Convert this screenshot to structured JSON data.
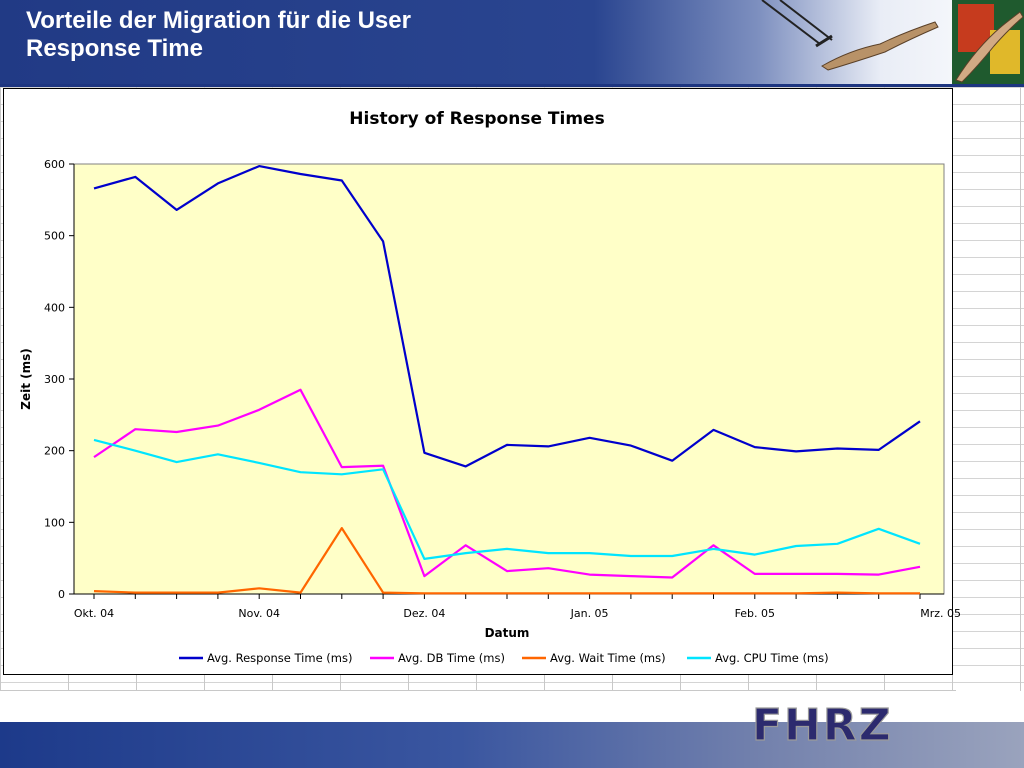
{
  "slide": {
    "title_line1": "Vorteile der Migration für die User",
    "title_line2": "Response Time",
    "logo_text": "FHRZ"
  },
  "colors": {
    "header_blue": "#213a85",
    "plot_bg": "#ffffc8",
    "response": "#0000cc",
    "db": "#ff00ff",
    "wait": "#ff6600",
    "cpu": "#00e5ff"
  },
  "chart_data": {
    "type": "line",
    "title": "History of Response Times",
    "xlabel": "Datum",
    "ylabel": "Zeit (ms)",
    "ylim": [
      0,
      600
    ],
    "yticks": [
      0,
      100,
      200,
      300,
      400,
      500,
      600
    ],
    "x_tick_labels": [
      "Okt. 04",
      "Nov. 04",
      "Dez. 04",
      "Jan. 05",
      "Feb. 05",
      "Mrz. 05"
    ],
    "x_tick_label_positions": [
      0,
      4,
      8,
      12,
      16,
      20.5
    ],
    "n_points": 21,
    "grid": false,
    "legend_position": "bottom",
    "series": [
      {
        "name": "Avg. Response Time (ms)",
        "color": "#0000cc",
        "values": [
          566,
          582,
          536,
          573,
          597,
          586,
          577,
          492,
          197,
          178,
          208,
          206,
          218,
          207,
          186,
          229,
          205,
          199,
          203,
          201,
          241
        ]
      },
      {
        "name": "Avg. DB Time (ms)",
        "color": "#ff00ff",
        "values": [
          191,
          230,
          226,
          235,
          257,
          285,
          177,
          179,
          25,
          68,
          32,
          36,
          27,
          25,
          23,
          68,
          28,
          28,
          28,
          27,
          38
        ]
      },
      {
        "name": "Avg. Wait Time (ms)",
        "color": "#ff6600",
        "values": [
          4,
          2,
          2,
          2,
          8,
          2,
          92,
          2,
          1,
          1,
          1,
          1,
          1,
          1,
          1,
          1,
          1,
          1,
          2,
          1,
          1
        ]
      },
      {
        "name": "Avg. CPU Time (ms)",
        "color": "#00e5ff",
        "values": [
          215,
          200,
          184,
          195,
          183,
          170,
          167,
          174,
          49,
          57,
          63,
          57,
          57,
          53,
          53,
          63,
          55,
          67,
          70,
          91,
          70
        ]
      }
    ]
  }
}
